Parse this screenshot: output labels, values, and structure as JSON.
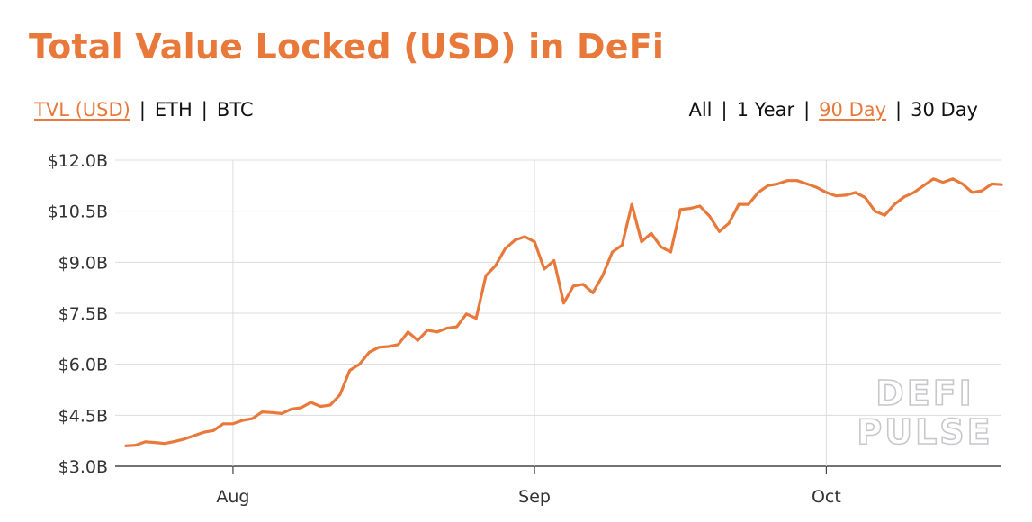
{
  "title": "Total Value Locked (USD) in DeFi",
  "metric_tabs": [
    {
      "label": "TVL (USD)",
      "active": true
    },
    {
      "label": "ETH",
      "active": false
    },
    {
      "label": "BTC",
      "active": false
    }
  ],
  "range_tabs": [
    {
      "label": "All",
      "active": false
    },
    {
      "label": "1 Year",
      "active": false
    },
    {
      "label": "90 Day",
      "active": true
    },
    {
      "label": "30 Day",
      "active": false
    }
  ],
  "colors": {
    "accent": "#e8793a",
    "grid": "#dcdcdc",
    "axis": "#444444"
  },
  "watermark": [
    "DEFI",
    "PULSE"
  ],
  "chart_data": {
    "type": "line",
    "title": "Total Value Locked (USD) in DeFi",
    "xlabel": "",
    "ylabel": "",
    "ylim": [
      3.0,
      12.0
    ],
    "y_unit": "B USD",
    "y_ticks": [
      {
        "value": 3.0,
        "label": "$3.0B"
      },
      {
        "value": 4.5,
        "label": "$4.5B"
      },
      {
        "value": 6.0,
        "label": "$6.0B"
      },
      {
        "value": 7.5,
        "label": "$7.5B"
      },
      {
        "value": 9.0,
        "label": "$9.0B"
      },
      {
        "value": 10.5,
        "label": "$10.5B"
      },
      {
        "value": 12.0,
        "label": "$12.0B"
      }
    ],
    "x_ticks": [
      {
        "date": "2020-08-01",
        "label": "Aug"
      },
      {
        "date": "2020-09-01",
        "label": "Sep"
      },
      {
        "date": "2020-10-01",
        "label": "Oct"
      }
    ],
    "grid": true,
    "series": [
      {
        "color": "#e8793a",
        "points": [
          [
            "2020-07-21",
            3.6
          ],
          [
            "2020-07-22",
            3.62
          ],
          [
            "2020-07-23",
            3.72
          ],
          [
            "2020-07-24",
            3.7
          ],
          [
            "2020-07-25",
            3.67
          ],
          [
            "2020-07-26",
            3.73
          ],
          [
            "2020-07-27",
            3.8
          ],
          [
            "2020-07-28",
            3.9
          ],
          [
            "2020-07-29",
            4.0
          ],
          [
            "2020-07-30",
            4.05
          ],
          [
            "2020-07-31",
            4.25
          ],
          [
            "2020-08-01",
            4.25
          ],
          [
            "2020-08-02",
            4.35
          ],
          [
            "2020-08-03",
            4.4
          ],
          [
            "2020-08-04",
            4.6
          ],
          [
            "2020-08-05",
            4.58
          ],
          [
            "2020-08-06",
            4.55
          ],
          [
            "2020-08-07",
            4.68
          ],
          [
            "2020-08-08",
            4.72
          ],
          [
            "2020-08-09",
            4.88
          ],
          [
            "2020-08-10",
            4.76
          ],
          [
            "2020-08-11",
            4.8
          ],
          [
            "2020-08-12",
            5.1
          ],
          [
            "2020-08-13",
            5.82
          ],
          [
            "2020-08-14",
            6.0
          ],
          [
            "2020-08-15",
            6.35
          ],
          [
            "2020-08-16",
            6.5
          ],
          [
            "2020-08-17",
            6.52
          ],
          [
            "2020-08-18",
            6.58
          ],
          [
            "2020-08-19",
            6.95
          ],
          [
            "2020-08-20",
            6.7
          ],
          [
            "2020-08-21",
            7.0
          ],
          [
            "2020-08-22",
            6.95
          ],
          [
            "2020-08-23",
            7.06
          ],
          [
            "2020-08-24",
            7.1
          ],
          [
            "2020-08-25",
            7.48
          ],
          [
            "2020-08-26",
            7.35
          ],
          [
            "2020-08-27",
            8.6
          ],
          [
            "2020-08-28",
            8.9
          ],
          [
            "2020-08-29",
            9.4
          ],
          [
            "2020-08-30",
            9.65
          ],
          [
            "2020-08-31",
            9.75
          ],
          [
            "2020-09-01",
            9.6
          ],
          [
            "2020-09-02",
            8.8
          ],
          [
            "2020-09-03",
            9.05
          ],
          [
            "2020-09-04",
            7.8
          ],
          [
            "2020-09-05",
            8.3
          ],
          [
            "2020-09-06",
            8.35
          ],
          [
            "2020-09-07",
            8.1
          ],
          [
            "2020-09-08",
            8.6
          ],
          [
            "2020-09-09",
            9.3
          ],
          [
            "2020-09-10",
            9.5
          ],
          [
            "2020-09-11",
            10.7
          ],
          [
            "2020-09-12",
            9.6
          ],
          [
            "2020-09-13",
            9.85
          ],
          [
            "2020-09-14",
            9.45
          ],
          [
            "2020-09-15",
            9.3
          ],
          [
            "2020-09-16",
            10.55
          ],
          [
            "2020-09-17",
            10.58
          ],
          [
            "2020-09-18",
            10.65
          ],
          [
            "2020-09-19",
            10.35
          ],
          [
            "2020-09-20",
            9.9
          ],
          [
            "2020-09-21",
            10.15
          ],
          [
            "2020-09-22",
            10.7
          ],
          [
            "2020-09-23",
            10.7
          ],
          [
            "2020-09-24",
            11.05
          ],
          [
            "2020-09-25",
            11.25
          ],
          [
            "2020-09-26",
            11.3
          ],
          [
            "2020-09-27",
            11.4
          ],
          [
            "2020-09-28",
            11.4
          ],
          [
            "2020-09-29",
            11.3
          ],
          [
            "2020-09-30",
            11.2
          ],
          [
            "2020-10-01",
            11.05
          ],
          [
            "2020-10-02",
            10.95
          ],
          [
            "2020-10-03",
            10.97
          ],
          [
            "2020-10-04",
            11.05
          ],
          [
            "2020-10-05",
            10.9
          ],
          [
            "2020-10-06",
            10.5
          ],
          [
            "2020-10-07",
            10.38
          ],
          [
            "2020-10-08",
            10.7
          ],
          [
            "2020-10-09",
            10.92
          ],
          [
            "2020-10-10",
            11.05
          ],
          [
            "2020-10-11",
            11.25
          ],
          [
            "2020-10-12",
            11.45
          ],
          [
            "2020-10-13",
            11.35
          ],
          [
            "2020-10-14",
            11.45
          ],
          [
            "2020-10-15",
            11.3
          ],
          [
            "2020-10-16",
            11.05
          ],
          [
            "2020-10-17",
            11.1
          ],
          [
            "2020-10-18",
            11.3
          ],
          [
            "2020-10-19",
            11.28
          ]
        ]
      }
    ]
  }
}
